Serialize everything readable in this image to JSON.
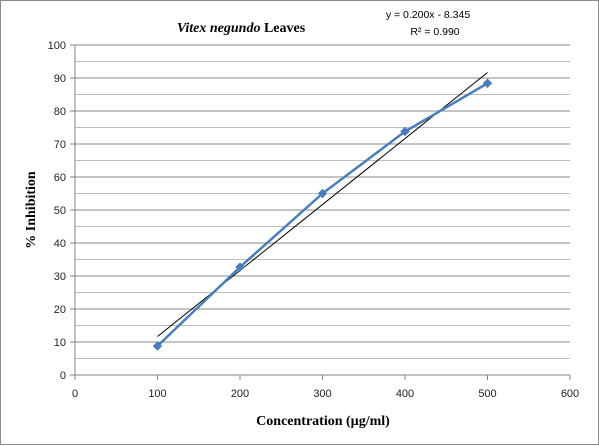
{
  "chart_data": {
    "type": "scatter",
    "title_italic": "Vitex negundo",
    "title_rest": " Leaves",
    "xlabel": "Concentration (µg/ml)",
    "ylabel": "% Inhibition",
    "xlim": [
      0,
      600
    ],
    "ylim": [
      0,
      100
    ],
    "x_ticks": [
      0,
      100,
      200,
      300,
      400,
      500,
      600
    ],
    "y_ticks": [
      0,
      10,
      20,
      30,
      40,
      50,
      60,
      70,
      80,
      90,
      100
    ],
    "grid_minor_y": 2,
    "series": [
      {
        "x": [
          100,
          200,
          300,
          400,
          500
        ],
        "values": [
          8.8,
          32.7,
          55.0,
          73.8,
          88.4
        ],
        "color": "#4a7ebb",
        "marker": "diamond",
        "connected": true
      }
    ],
    "trendline": {
      "type": "linear",
      "slope": 0.2,
      "intercept": -8.345,
      "x_range": [
        100,
        500
      ],
      "color": "#000000"
    },
    "equation_text": "y = 0.200x - 8.345",
    "r2_text": "R² = 0.990"
  }
}
